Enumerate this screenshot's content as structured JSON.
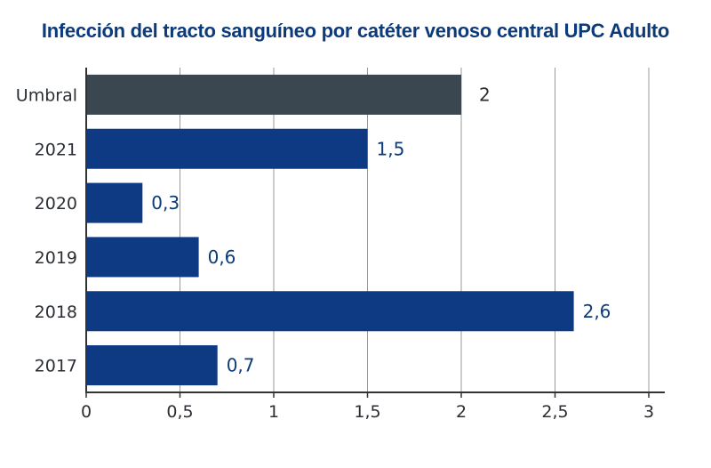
{
  "chart_data": {
    "type": "bar",
    "orientation": "horizontal",
    "title": "Infección del tracto sanguíneo por catéter venoso central UPC Adulto",
    "xlabel": "",
    "ylabel": "",
    "categories": [
      "Umbral",
      "2021",
      "2020",
      "2019",
      "2018",
      "2017"
    ],
    "values": [
      2,
      1.5,
      0.3,
      0.6,
      2.6,
      0.7
    ],
    "data_labels": [
      "2",
      "1,5",
      "0,3",
      "0,6",
      "2,6",
      "0,7"
    ],
    "xlim": [
      0,
      3
    ],
    "x_ticks": [
      0,
      0.5,
      1,
      1.5,
      2,
      2.5,
      3
    ],
    "x_tick_labels": [
      "0",
      "0,5",
      "1",
      "1,5",
      "2",
      "2,5",
      "3"
    ],
    "grid": "vertical",
    "legend": "none",
    "colors": {
      "threshold_bar": "#3a4750",
      "bars": "#0d3a82",
      "threshold_label": "#2a2f35",
      "data_label": "#0d3a78",
      "title": "#0d3a78",
      "grid": "#9a9a9a",
      "axis": "#333333"
    }
  }
}
